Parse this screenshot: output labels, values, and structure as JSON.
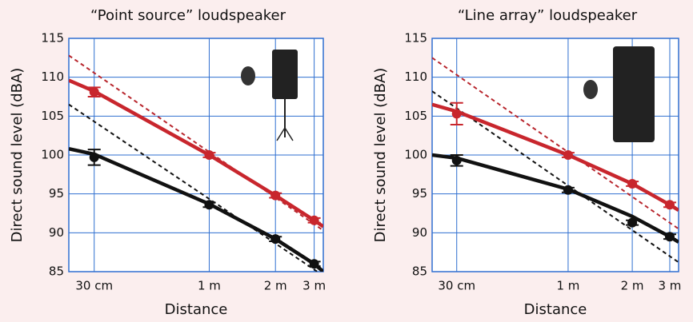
{
  "chart_data": [
    {
      "type": "line",
      "title": "“Point source” loudspeaker",
      "xlabel": "Distance",
      "ylabel": "Direct sound level (dBA)",
      "log_x": true,
      "grid": true,
      "xlim": [
        0.23,
        3.3
      ],
      "ylim": [
        85,
        115
      ],
      "xticks": [
        {
          "value": 0.3,
          "label": "30 cm"
        },
        {
          "value": 1,
          "label": "1 m"
        },
        {
          "value": 2,
          "label": "2 m"
        },
        {
          "value": 3,
          "label": "3 m"
        }
      ],
      "yticks": [
        85,
        90,
        95,
        100,
        105,
        110,
        115
      ],
      "series": [
        {
          "mode": "dashed",
          "color": "#b8262d",
          "x": [
            0.23,
            3.3
          ],
          "values": [
            112.8,
            90.3
          ]
        },
        {
          "mode": "dashed",
          "color": "#111111",
          "x": [
            0.23,
            3.1
          ],
          "values": [
            106.5,
            85
          ]
        },
        {
          "mode": "line",
          "color": "#c8262d",
          "x": [
            0.23,
            0.3,
            1,
            2,
            3,
            3.3
          ],
          "values": [
            109.6,
            108.2,
            100,
            94.8,
            91.6,
            90.8
          ]
        },
        {
          "mode": "line",
          "color": "#111111",
          "x": [
            0.23,
            0.3,
            1,
            2,
            3,
            3.3
          ],
          "values": [
            100.8,
            100.1,
            93.7,
            89.2,
            86,
            85
          ]
        },
        {
          "mode": "markers",
          "color": "#c8262d",
          "x": [
            0.3,
            1,
            2,
            3
          ],
          "values": [
            108.1,
            100,
            94.8,
            91.6
          ],
          "errors": [
            0.6,
            0.3,
            0.3,
            0.3
          ]
        },
        {
          "mode": "markers",
          "color": "#111111",
          "x": [
            0.3,
            1,
            2,
            3
          ],
          "values": [
            99.7,
            93.6,
            89.2,
            86
          ],
          "errors": [
            1,
            0.3,
            0.3,
            0.3
          ]
        }
      ]
    },
    {
      "type": "line",
      "title": "“Line array” loudspeaker",
      "xlabel": "Distance",
      "ylabel": "Direct sound level (dBA)",
      "log_x": true,
      "grid": true,
      "xlim": [
        0.23,
        3.3
      ],
      "ylim": [
        85,
        115
      ],
      "xticks": [
        {
          "value": 0.3,
          "label": "30 cm"
        },
        {
          "value": 1,
          "label": "1 m"
        },
        {
          "value": 2,
          "label": "2 m"
        },
        {
          "value": 3,
          "label": "3 m"
        }
      ],
      "yticks": [
        85,
        90,
        95,
        100,
        105,
        110,
        115
      ],
      "series": [
        {
          "mode": "dashed",
          "color": "#b8262d",
          "x": [
            0.23,
            3.3
          ],
          "values": [
            112.5,
            90.5
          ]
        },
        {
          "mode": "dashed",
          "color": "#111111",
          "x": [
            0.23,
            3.3
          ],
          "values": [
            108.2,
            86.2
          ]
        },
        {
          "mode": "line",
          "color": "#c8262d",
          "x": [
            0.23,
            0.3,
            1,
            2,
            3,
            3.3
          ],
          "values": [
            106.5,
            105.6,
            100,
            96.3,
            93.6,
            92.9
          ]
        },
        {
          "mode": "line",
          "color": "#111111",
          "x": [
            0.23,
            0.3,
            1,
            2,
            3,
            3.3
          ],
          "values": [
            100,
            99.6,
            95.6,
            92.1,
            89.5,
            88.8
          ]
        },
        {
          "mode": "markers",
          "color": "#c8262d",
          "x": [
            0.3,
            1,
            2,
            3
          ],
          "values": [
            105.3,
            100,
            96.3,
            93.6
          ],
          "errors": [
            1.4,
            0.3,
            0.3,
            0.3
          ]
        },
        {
          "mode": "markers",
          "color": "#111111",
          "x": [
            0.3,
            1,
            2,
            3
          ],
          "values": [
            99.3,
            95.5,
            91.3,
            89.5
          ],
          "errors": [
            0.7,
            0.3,
            0.3,
            0.3
          ]
        }
      ]
    }
  ]
}
